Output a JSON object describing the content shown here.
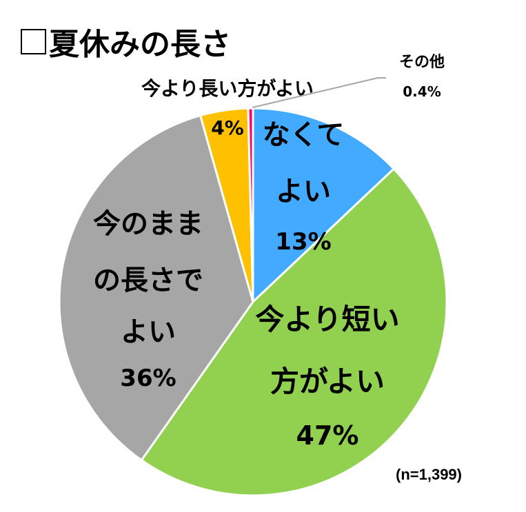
{
  "title": "夏休みの長さ",
  "title_icon": "square-outline-icon",
  "sample_size": "(n=1,399)",
  "chart_data": {
    "type": "pie",
    "title": "夏休みの長さ",
    "start": "12 o'clock, clockwise",
    "slices": [
      {
        "label": "なくてよい",
        "label_lines": [
          "なくて",
          "よい"
        ],
        "value": 13,
        "value_label": "13%",
        "color": "#42ABFF"
      },
      {
        "label": "今より短い方がよい",
        "label_lines": [
          "今より短い",
          "方がよい"
        ],
        "value": 47,
        "value_label": "47%",
        "color": "#92D050"
      },
      {
        "label": "今のままの長さでよい",
        "label_lines": [
          "今のまま",
          "の長さで",
          "よい"
        ],
        "value": 36,
        "value_label": "36%",
        "color": "#A6A6A6"
      },
      {
        "label": "今より長い方がよい",
        "label_lines": [
          "今より長い方がよい"
        ],
        "value": 4,
        "value_label": "4%",
        "color": "#FFC000"
      },
      {
        "label": "その他",
        "label_lines": [
          "その他"
        ],
        "value": 0.4,
        "value_label": "0.4%",
        "color": "#FF0066"
      }
    ]
  }
}
